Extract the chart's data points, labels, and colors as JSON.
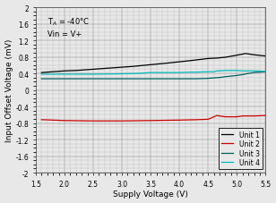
{
  "title": "",
  "xlabel": "Supply Voltage (V)",
  "ylabel": "Input Offset Voltage (mV)",
  "annotation_line1": "T$_A$ = -40°C",
  "annotation_line2": "Vin = V+",
  "xlim": [
    1.5,
    5.5
  ],
  "ylim": [
    -2.0,
    2.0
  ],
  "xticks": [
    1.5,
    2.0,
    2.5,
    3.0,
    3.5,
    4.0,
    4.5,
    5.0,
    5.5
  ],
  "yticks": [
    -2.0,
    -1.6,
    -1.2,
    -0.8,
    -0.4,
    0.0,
    0.4,
    0.8,
    1.2,
    1.6,
    2.0
  ],
  "ytick_labels": [
    "-2",
    "-1.6",
    "-1.2",
    "-0.8",
    "-0.4",
    "0",
    "0.4",
    "0.8",
    "1.2",
    "1.6",
    "2"
  ],
  "legend": [
    "Unit 1",
    "Unit 2",
    "Unit 3",
    "Unit 4"
  ],
  "colors": [
    "#000000",
    "#cc0000",
    "#006060",
    "#00bbbb"
  ],
  "bg_color": "#e8e8e8",
  "unit1_x": [
    1.6,
    1.8,
    2.0,
    2.2,
    2.5,
    2.8,
    3.0,
    3.2,
    3.5,
    3.8,
    4.0,
    4.2,
    4.5,
    4.65,
    4.8,
    5.0,
    5.15,
    5.3,
    5.5
  ],
  "unit1_y": [
    0.42,
    0.44,
    0.46,
    0.47,
    0.5,
    0.53,
    0.55,
    0.57,
    0.61,
    0.65,
    0.68,
    0.71,
    0.76,
    0.77,
    0.79,
    0.84,
    0.88,
    0.85,
    0.82
  ],
  "unit2_x": [
    1.6,
    1.8,
    2.0,
    2.5,
    3.0,
    3.5,
    4.0,
    4.3,
    4.5,
    4.6,
    4.65,
    4.7,
    4.8,
    5.0,
    5.1,
    5.2,
    5.3,
    5.5
  ],
  "unit2_y": [
    -0.72,
    -0.73,
    -0.74,
    -0.75,
    -0.75,
    -0.74,
    -0.73,
    -0.72,
    -0.71,
    -0.65,
    -0.62,
    -0.63,
    -0.65,
    -0.65,
    -0.63,
    -0.63,
    -0.63,
    -0.62
  ],
  "unit3_x": [
    1.6,
    1.8,
    2.0,
    2.5,
    3.0,
    3.5,
    4.0,
    4.3,
    4.5,
    4.6,
    4.7,
    4.8,
    5.0,
    5.1,
    5.2,
    5.3,
    5.5
  ],
  "unit3_y": [
    0.27,
    0.27,
    0.27,
    0.27,
    0.27,
    0.27,
    0.27,
    0.27,
    0.28,
    0.29,
    0.3,
    0.32,
    0.35,
    0.37,
    0.4,
    0.42,
    0.44
  ],
  "unit4_x": [
    1.6,
    1.8,
    2.0,
    2.5,
    3.0,
    3.3,
    3.5,
    3.8,
    4.0,
    4.2,
    4.3,
    4.5,
    4.6,
    4.65,
    4.7,
    4.8,
    5.0,
    5.1,
    5.2,
    5.3,
    5.5
  ],
  "unit4_y": [
    0.38,
    0.38,
    0.38,
    0.38,
    0.39,
    0.4,
    0.42,
    0.42,
    0.42,
    0.43,
    0.43,
    0.44,
    0.44,
    0.46,
    0.46,
    0.47,
    0.47,
    0.46,
    0.46,
    0.46,
    0.45
  ]
}
